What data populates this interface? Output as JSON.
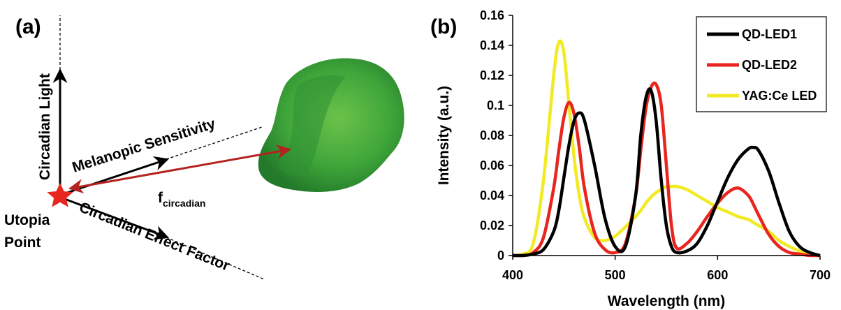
{
  "panel_a": {
    "label": "(a)",
    "axis_vertical": "Circadian Light",
    "axis_diagonal_up": "Melanopic Sensitivity",
    "axis_diagonal_down": "Circadian Effect Factor",
    "origin_label_line1": "Utopia",
    "origin_label_line2": "Point",
    "vector_label_main": "f",
    "vector_label_sub": "circadian"
  },
  "panel_b": {
    "label": "(b)"
  },
  "chart_data": {
    "type": "line",
    "title": "",
    "xlabel": "Wavelength (nm)",
    "ylabel": "Intensity (a.u.)",
    "xlim": [
      400,
      700
    ],
    "ylim": [
      0,
      0.16
    ],
    "xticks": [
      400,
      500,
      600,
      700
    ],
    "yticks": [
      0,
      0.02,
      0.04,
      0.06,
      0.08,
      0.1,
      0.12,
      0.14,
      0.16
    ],
    "ytick_labels": [
      "0",
      "0.02",
      "0.04",
      "0.06",
      "0.08",
      "0.1",
      "0.12",
      "0.14",
      "0.16"
    ],
    "grid": false,
    "legend_position": "top-right",
    "x": [
      400,
      410,
      420,
      430,
      440,
      445,
      450,
      455,
      460,
      465,
      470,
      480,
      490,
      500,
      510,
      520,
      525,
      530,
      535,
      540,
      545,
      550,
      555,
      560,
      570,
      580,
      590,
      600,
      610,
      620,
      630,
      635,
      640,
      650,
      660,
      670,
      680,
      690,
      700
    ],
    "series": [
      {
        "name": "QD-LED1",
        "color": "#000000",
        "values": [
          0,
          0,
          0.001,
          0.004,
          0.016,
          0.03,
          0.052,
          0.074,
          0.09,
          0.095,
          0.09,
          0.06,
          0.025,
          0.006,
          0.006,
          0.04,
          0.08,
          0.105,
          0.11,
          0.09,
          0.05,
          0.02,
          0.006,
          0.002,
          0.003,
          0.008,
          0.02,
          0.036,
          0.052,
          0.064,
          0.071,
          0.072,
          0.07,
          0.056,
          0.035,
          0.016,
          0.006,
          0.002,
          0
        ]
      },
      {
        "name": "QD-LED2",
        "color": "#e8251f",
        "values": [
          0,
          0,
          0.002,
          0.012,
          0.045,
          0.07,
          0.092,
          0.102,
          0.094,
          0.072,
          0.045,
          0.015,
          0.004,
          0.002,
          0.008,
          0.04,
          0.07,
          0.098,
          0.112,
          0.114,
          0.1,
          0.06,
          0.02,
          0.005,
          0.008,
          0.016,
          0.026,
          0.035,
          0.042,
          0.045,
          0.04,
          0.034,
          0.027,
          0.014,
          0.006,
          0.002,
          0.001,
          0,
          0
        ]
      },
      {
        "name": "YAG:Ce LED",
        "color": "#f2ea24",
        "values": [
          0,
          0.001,
          0.008,
          0.05,
          0.12,
          0.142,
          0.135,
          0.1,
          0.065,
          0.04,
          0.025,
          0.012,
          0.01,
          0.013,
          0.019,
          0.026,
          0.03,
          0.035,
          0.039,
          0.042,
          0.044,
          0.046,
          0.046,
          0.046,
          0.044,
          0.04,
          0.036,
          0.032,
          0.029,
          0.026,
          0.024,
          0.022,
          0.02,
          0.016,
          0.01,
          0.006,
          0.003,
          0.001,
          0
        ]
      }
    ]
  }
}
